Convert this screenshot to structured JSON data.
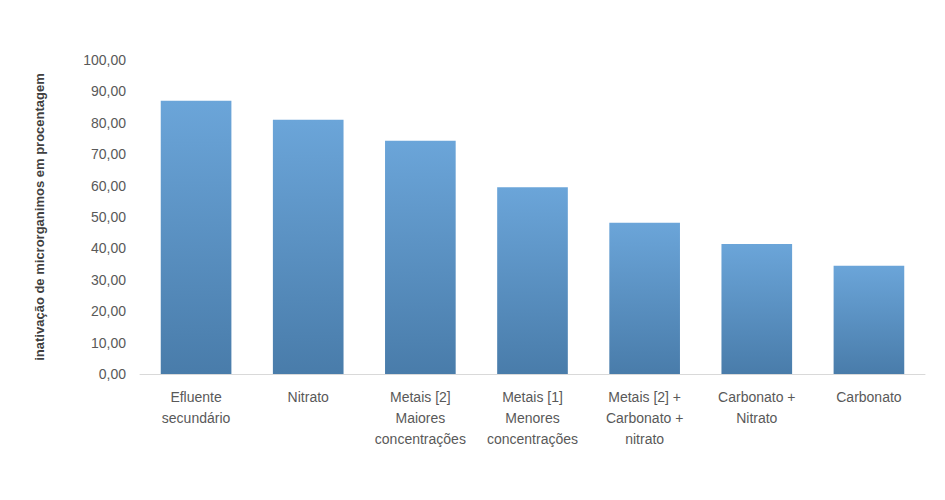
{
  "chart_data": {
    "type": "bar",
    "y_label": "inativação de microrganimos em procentagem",
    "categories": [
      "Efluente\nsecundário",
      "Nitrato",
      "Metais [2]\nMaiores\nconcentrações",
      "Metais [1]\nMenores\nconcentrações",
      "Metais [2] +\nCarbonato +\nnitrato",
      "Carbonato +\nNitrato",
      "Carbonato"
    ],
    "values": [
      87.0,
      81.0,
      74.3,
      59.5,
      48.2,
      41.4,
      34.5
    ],
    "color": "#5b9bd5",
    "ylim": [
      0,
      100
    ],
    "yticks": [
      {
        "value": 0,
        "label": "0,00"
      },
      {
        "value": 10,
        "label": "10,00"
      },
      {
        "value": 20,
        "label": "20,00"
      },
      {
        "value": 30,
        "label": "30,00"
      },
      {
        "value": 40,
        "label": "40,00"
      },
      {
        "value": 50,
        "label": "50,00"
      },
      {
        "value": 60,
        "label": "60,00"
      },
      {
        "value": 70,
        "label": "70,00"
      },
      {
        "value": 80,
        "label": "80,00"
      },
      {
        "value": 90,
        "label": "90,00"
      },
      {
        "value": 100,
        "label": "100,00"
      }
    ],
    "grid": false
  }
}
